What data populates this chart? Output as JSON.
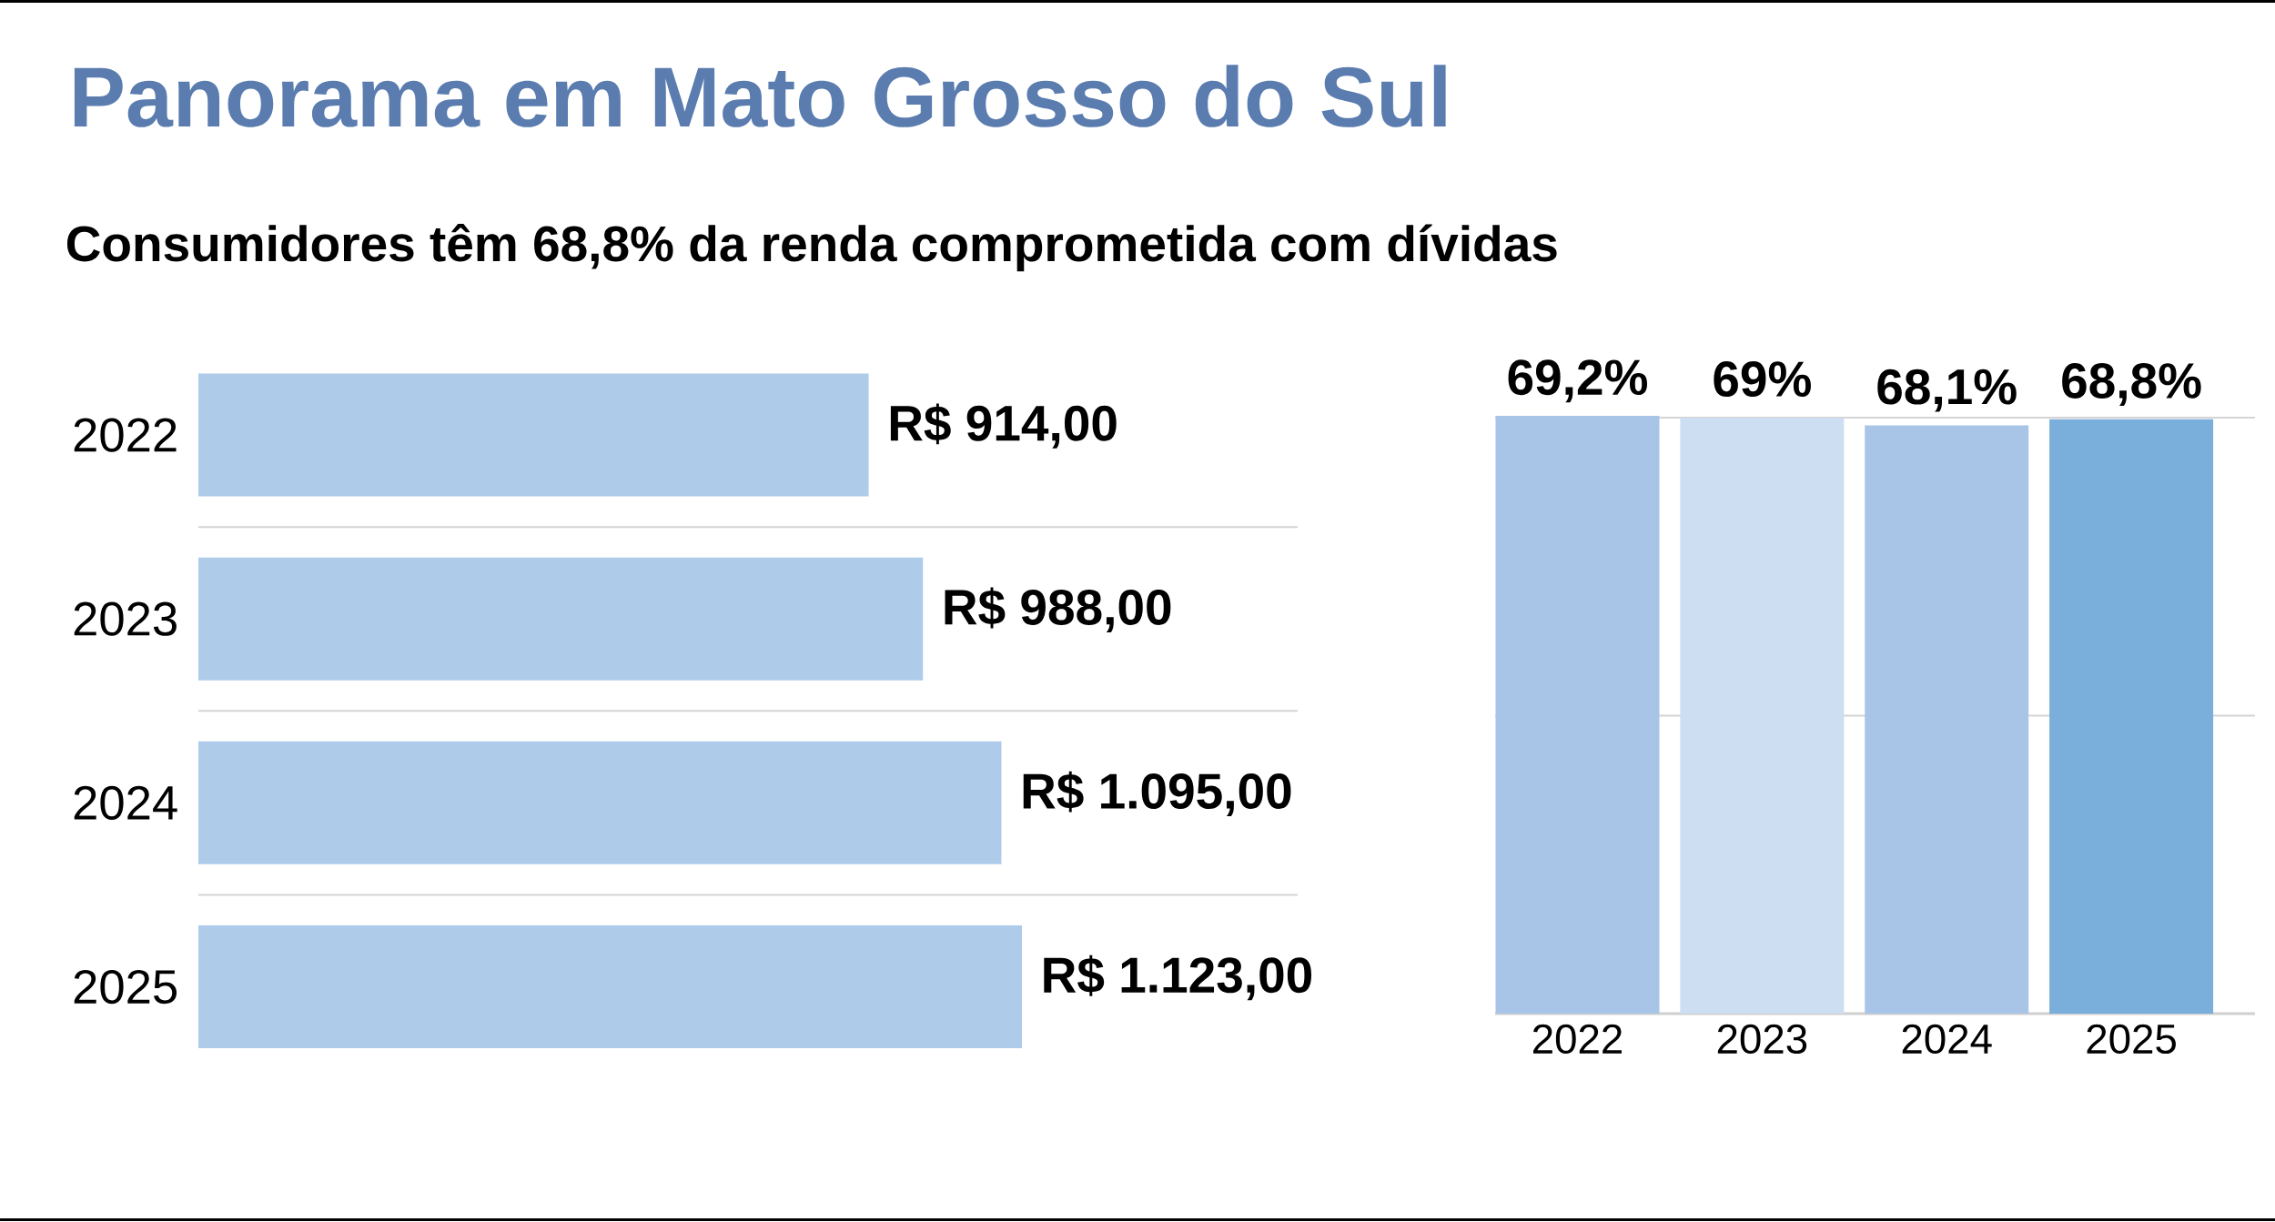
{
  "chart_data": [
    {
      "type": "bar",
      "orientation": "horizontal",
      "title": "Panorama em Mato Grosso do Sul",
      "subtitle": "Consumidores têm 68,8% da renda comprometida com dívidas",
      "categories": [
        "2022",
        "2023",
        "2024",
        "2025"
      ],
      "values": [
        914,
        988,
        1095,
        1123
      ],
      "value_labels": [
        "R$ 914,00",
        "R$ 988,00",
        "R$ 1.095,00",
        "R$ 1.123,00"
      ],
      "color": "#aecbea",
      "grid": "y",
      "tick_labels": "y"
    },
    {
      "type": "bar",
      "categories": [
        "2022",
        "2023",
        "2024",
        "2025"
      ],
      "values": [
        69.2,
        69,
        68.1,
        68.8
      ],
      "value_labels": [
        "69,2%",
        "69%",
        "68,1%",
        "68,8%"
      ],
      "colors": [
        "#a8c5e8",
        "#cddef2",
        "#a8c5e8",
        "#7aaedb"
      ],
      "ref_lines": [
        {
          "axis": "y",
          "value": 34.5,
          "color": "#d4d4d4"
        },
        {
          "axis": "y",
          "value": 69,
          "color": "#d4d4d4"
        }
      ],
      "tick_labels": "x"
    }
  ]
}
